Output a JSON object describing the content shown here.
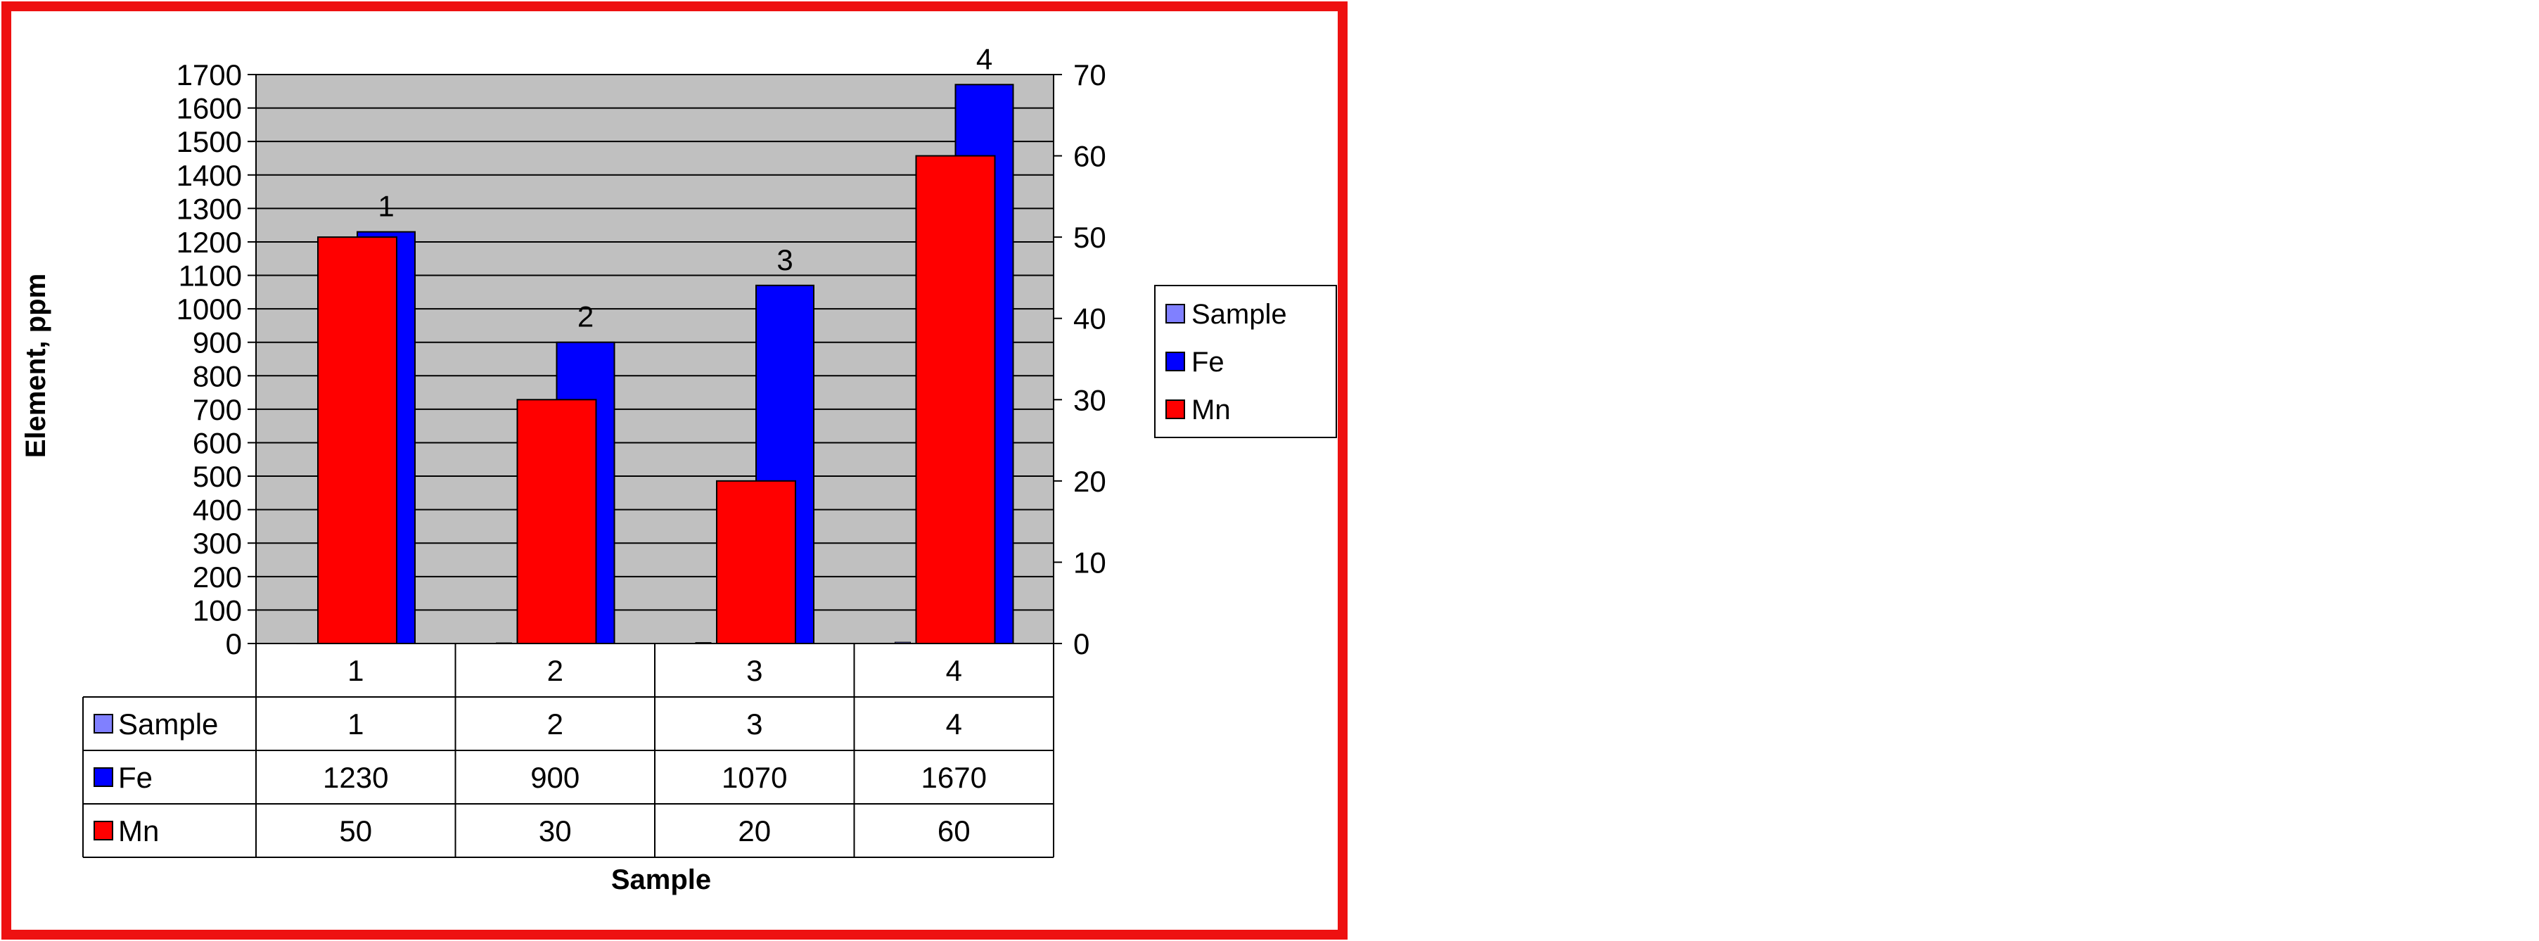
{
  "chart_data": {
    "type": "bar",
    "categories": [
      "1",
      "2",
      "3",
      "4"
    ],
    "series": [
      {
        "name": "Sample",
        "values": [
          1,
          2,
          3,
          4
        ],
        "axis": "left",
        "color": "#8080ff"
      },
      {
        "name": "Fe",
        "values": [
          1230,
          900,
          1070,
          1670
        ],
        "axis": "left",
        "color": "#0000ff"
      },
      {
        "name": "Mn",
        "values": [
          50,
          30,
          20,
          60
        ],
        "axis": "right",
        "color": "#ff0000"
      }
    ],
    "xlabel": "Sample",
    "ylabel": "Element, ppm",
    "ylim": [
      0,
      1700
    ],
    "ylim_right": [
      0,
      70
    ],
    "yticks": [
      "0",
      "100",
      "200",
      "300",
      "400",
      "500",
      "600",
      "700",
      "800",
      "900",
      "1000",
      "1100",
      "1200",
      "1300",
      "1400",
      "1500",
      "1600",
      "1700"
    ],
    "yticks_right": [
      "0",
      "10",
      "20",
      "30",
      "40",
      "50",
      "60",
      "70"
    ],
    "data_labels": [
      "1",
      "2",
      "3",
      "4"
    ],
    "grid": true,
    "legend": "right",
    "data_table": {
      "header": [
        "1",
        "2",
        "3",
        "4"
      ],
      "rows": [
        {
          "name": "Sample",
          "cells": [
            "1",
            "2",
            "3",
            "4"
          ]
        },
        {
          "name": "Fe",
          "cells": [
            "1230",
            "900",
            "1070",
            "1670"
          ]
        },
        {
          "name": "Mn",
          "cells": [
            "50",
            "30",
            "20",
            "60"
          ]
        }
      ]
    },
    "colors": {
      "plot_background": "#c0c0c0",
      "border": "#ee1111"
    }
  }
}
